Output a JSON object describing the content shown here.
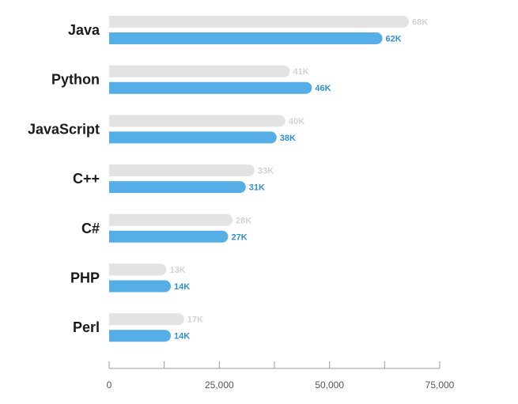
{
  "chart_data": {
    "type": "bar",
    "orientation": "horizontal",
    "title": "",
    "xlabel": "",
    "ylabel": "",
    "categories": [
      "Java",
      "Python",
      "JavaScript",
      "C++",
      "C#",
      "PHP",
      "Perl"
    ],
    "series": [
      {
        "values": [
          68000,
          41000,
          40000,
          33000,
          28000,
          13000,
          17000
        ],
        "labels": [
          "68K",
          "41K",
          "40K",
          "33K",
          "28K",
          "13K",
          "17K"
        ],
        "color": "#e3e3e3",
        "label_color": "#d2d2d2"
      },
      {
        "values": [
          62000,
          46000,
          38000,
          31000,
          27000,
          14000,
          14000
        ],
        "labels": [
          "62K",
          "46K",
          "38K",
          "31K",
          "27K",
          "14K",
          "14K"
        ],
        "color": "#55aee6",
        "label_color": "#2f8fd0"
      }
    ],
    "xlim": [
      0,
      75000
    ],
    "x_ticks": [
      0,
      25000,
      50000,
      75000
    ],
    "x_tick_labels": [
      "0",
      "25,000",
      "50,000",
      "75,000"
    ],
    "grid": false,
    "legend": "none"
  }
}
